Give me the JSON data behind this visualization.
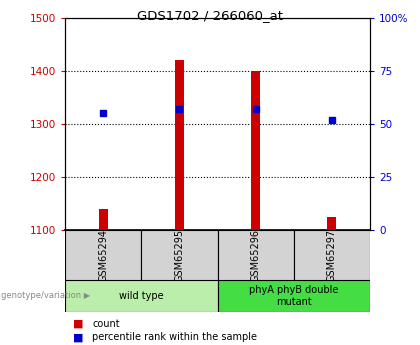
{
  "title": "GDS1702 / 266060_at",
  "samples": [
    "GSM65294",
    "GSM65295",
    "GSM65296",
    "GSM65297"
  ],
  "counts": [
    1140,
    1420,
    1400,
    1125
  ],
  "percentile_ranks": [
    55,
    57,
    57,
    52
  ],
  "ylim_left": [
    1100,
    1500
  ],
  "ylim_right": [
    0,
    100
  ],
  "yticks_left": [
    1100,
    1200,
    1300,
    1400,
    1500
  ],
  "yticks_right": [
    0,
    25,
    50,
    75,
    100
  ],
  "ytick_labels_right": [
    "0",
    "25",
    "50",
    "75",
    "100%"
  ],
  "groups": [
    {
      "label": "wild type",
      "samples": [
        0,
        1
      ],
      "color": "#bbeeaa"
    },
    {
      "label": "phyA phyB double\nmutant",
      "samples": [
        2,
        3
      ],
      "color": "#44dd44"
    }
  ],
  "bar_color": "#cc0000",
  "dot_color": "#0000cc",
  "left_tick_color": "#cc0000",
  "right_tick_color": "#0000cc",
  "legend_count_label": "count",
  "legend_percentile_label": "percentile rank within the sample",
  "genotype_label": "genotype/variation",
  "bg_sample_header": "#d3d3d3",
  "bg_group_wt": "#bbeeaa",
  "bg_group_mutant": "#44dd44"
}
